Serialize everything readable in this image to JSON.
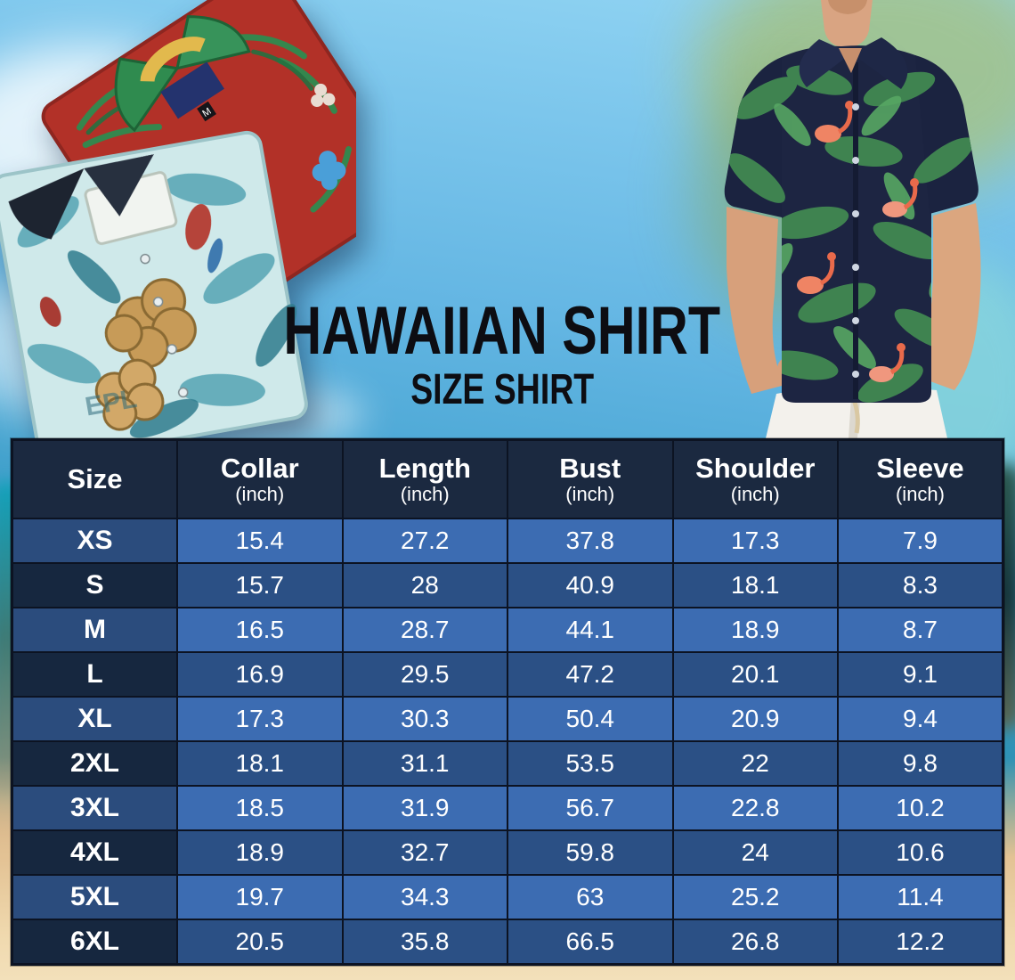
{
  "hero": {
    "title": "HAWAIIAN SHIRT",
    "subtitle": "SIZE SHIRT",
    "red_shirt_size_tag": "M",
    "teal_shirt_print_text": "EPL"
  },
  "size_chart": {
    "unit_label": "(inch)",
    "columns": [
      {
        "label": "Size",
        "sub": ""
      },
      {
        "label": "Collar",
        "sub": "(inch)"
      },
      {
        "label": "Length",
        "sub": "(inch)"
      },
      {
        "label": "Bust",
        "sub": "(inch)"
      },
      {
        "label": "Shoulder",
        "sub": "(inch)"
      },
      {
        "label": "Sleeve",
        "sub": "(inch)"
      }
    ],
    "rows": [
      {
        "size": "XS",
        "values": [
          "15.4",
          "27.2",
          "37.8",
          "17.3",
          "7.9"
        ]
      },
      {
        "size": "S",
        "values": [
          "15.7",
          "28",
          "40.9",
          "18.1",
          "8.3"
        ]
      },
      {
        "size": "M",
        "values": [
          "16.5",
          "28.7",
          "44.1",
          "18.9",
          "8.7"
        ]
      },
      {
        "size": "L",
        "values": [
          "16.9",
          "29.5",
          "47.2",
          "20.1",
          "9.1"
        ]
      },
      {
        "size": "XL",
        "values": [
          "17.3",
          "30.3",
          "50.4",
          "20.9",
          "9.4"
        ]
      },
      {
        "size": "2XL",
        "values": [
          "18.1",
          "31.1",
          "53.5",
          "22",
          "9.8"
        ]
      },
      {
        "size": "3XL",
        "values": [
          "18.5",
          "31.9",
          "56.7",
          "22.8",
          "10.2"
        ]
      },
      {
        "size": "4XL",
        "values": [
          "18.9",
          "32.7",
          "59.8",
          "24",
          "10.6"
        ]
      },
      {
        "size": "5XL",
        "values": [
          "19.7",
          "34.3",
          "63",
          "25.2",
          "11.4"
        ]
      },
      {
        "size": "6XL",
        "values": [
          "20.5",
          "35.8",
          "66.5",
          "26.8",
          "12.2"
        ]
      }
    ]
  },
  "colors": {
    "header_bg": "#1b2940",
    "row_bright_label_bg": "#2b4c7d",
    "row_bright_value_bg": "#3c6cb2",
    "row_dark_label_bg": "#16273f",
    "row_dark_value_bg": "#2b5085",
    "table_border": "#0c1322",
    "table_text": "#ffffff",
    "title_color": "#0d0d12",
    "sky_blue": "#7cc6ec",
    "sand": "#f0d9ae",
    "red_shirt": "#b23128",
    "teal_shirt": "#cfe9ea",
    "model_shirt_navy": "#1d2542",
    "leaf_green": "#3f8350",
    "flamingo_coral": "#ef8464"
  }
}
